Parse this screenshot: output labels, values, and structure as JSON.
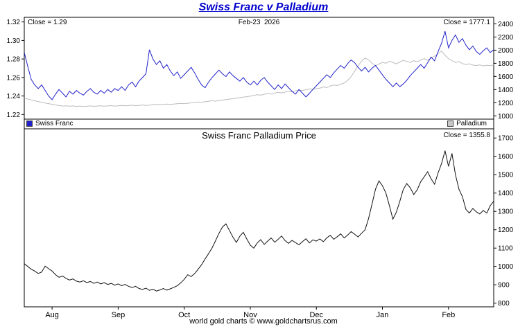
{
  "title": "Swiss Franc v Palladium",
  "footer": "world gold charts © www.goldchartsrus.com",
  "colors": {
    "title": "#0000CC",
    "swiss_franc": "#2222CC",
    "palladium": "#BBBBBB",
    "palladium_swatch": "#C8C8C8",
    "price_line": "#111111",
    "border": "#000000",
    "background": "#FFFFFF"
  },
  "top_chart": {
    "close_left": "Close = 1.29",
    "date_label": "Feb-23  2026",
    "close_right": "Close = 1777.1"
  },
  "legend": {
    "swiss_franc": "Swiss Franc",
    "palladium": "Palladium"
  },
  "bottom_chart": {
    "title": "Swiss Franc Palladium Price",
    "close_label": "Close = 1355.8"
  },
  "chart_data": [
    {
      "type": "line",
      "title": "Swiss Franc v Palladium",
      "date_label": "Feb-23  2026",
      "grid": false,
      "legend_position": "bottom",
      "x_axis": {
        "months": [
          "Aug",
          "Sep",
          "Oct",
          "Nov",
          "Dec",
          "Jan",
          "Feb"
        ],
        "month_start_indices": [
          8,
          27,
          46,
          65,
          84,
          103,
          122
        ],
        "points": 136
      },
      "left_axis": {
        "label": "Swiss Franc",
        "range": [
          1.215,
          1.325
        ],
        "ticks": [
          1.32,
          1.3,
          1.28,
          1.26,
          1.24,
          1.22
        ],
        "tick_labels": [
          "1.32",
          "1.30",
          "1.28",
          "1.26",
          "1.24",
          "1.22"
        ]
      },
      "right_axis": {
        "label": "Palladium",
        "range": [
          950,
          2500
        ],
        "ticks": [
          2400,
          2200,
          2000,
          1800,
          1600,
          1400,
          1200,
          1000
        ],
        "tick_labels": [
          "2400",
          "2200",
          "2000",
          "1800",
          "1600",
          "1400",
          "1200",
          "1000"
        ]
      },
      "series": [
        {
          "name": "Swiss Franc",
          "axis": "left",
          "color": "#2222CC",
          "close": 1.29,
          "values": [
            1.287,
            1.272,
            1.258,
            1.252,
            1.248,
            1.252,
            1.246,
            1.24,
            1.236,
            1.242,
            1.247,
            1.243,
            1.239,
            1.245,
            1.242,
            1.246,
            1.243,
            1.241,
            1.245,
            1.248,
            1.244,
            1.242,
            1.246,
            1.243,
            1.247,
            1.244,
            1.248,
            1.246,
            1.25,
            1.246,
            1.252,
            1.255,
            1.25,
            1.256,
            1.26,
            1.264,
            1.29,
            1.28,
            1.274,
            1.278,
            1.27,
            1.274,
            1.267,
            1.262,
            1.266,
            1.259,
            1.263,
            1.267,
            1.271,
            1.265,
            1.258,
            1.252,
            1.249,
            1.255,
            1.26,
            1.264,
            1.268,
            1.264,
            1.261,
            1.266,
            1.262,
            1.259,
            1.256,
            1.26,
            1.255,
            1.252,
            1.256,
            1.252,
            1.257,
            1.26,
            1.255,
            1.251,
            1.247,
            1.252,
            1.248,
            1.253,
            1.249,
            1.245,
            1.242,
            1.247,
            1.243,
            1.239,
            1.243,
            1.247,
            1.251,
            1.255,
            1.259,
            1.263,
            1.26,
            1.265,
            1.269,
            1.273,
            1.27,
            1.275,
            1.279,
            1.276,
            1.271,
            1.267,
            1.271,
            1.266,
            1.27,
            1.273,
            1.268,
            1.263,
            1.258,
            1.254,
            1.25,
            1.254,
            1.25,
            1.253,
            1.257,
            1.262,
            1.266,
            1.27,
            1.274,
            1.27,
            1.276,
            1.282,
            1.278,
            1.288,
            1.297,
            1.31,
            1.292,
            1.3,
            1.306,
            1.298,
            1.302,
            1.295,
            1.29,
            1.294,
            1.288,
            1.285,
            1.289,
            1.292,
            1.287,
            1.29
          ]
        },
        {
          "name": "Palladium",
          "axis": "right",
          "color": "#BBBBBB",
          "close": 1777.1,
          "values": [
            1270,
            1256,
            1243,
            1231,
            1218,
            1207,
            1196,
            1186,
            1176,
            1166,
            1156,
            1149,
            1153,
            1146,
            1151,
            1144,
            1149,
            1141,
            1146,
            1151,
            1145,
            1149,
            1153,
            1147,
            1151,
            1156,
            1149,
            1153,
            1158,
            1152,
            1157,
            1162,
            1155,
            1160,
            1165,
            1158,
            1163,
            1170,
            1175,
            1168,
            1174,
            1180,
            1174,
            1179,
            1185,
            1190,
            1184,
            1191,
            1198,
            1205,
            1212,
            1206,
            1215,
            1222,
            1230,
            1224,
            1232,
            1240,
            1248,
            1255,
            1262,
            1270,
            1278,
            1285,
            1292,
            1300,
            1310,
            1322,
            1315,
            1328,
            1340,
            1332,
            1345,
            1358,
            1350,
            1362,
            1375,
            1368,
            1380,
            1392,
            1385,
            1398,
            1410,
            1402,
            1415,
            1422,
            1440,
            1431,
            1455,
            1470,
            1461,
            1481,
            1500,
            1540,
            1600,
            1680,
            1762,
            1830,
            1880,
            1851,
            1801,
            1762,
            1790,
            1812,
            1800,
            1832,
            1815,
            1791,
            1820,
            1845,
            1828,
            1812,
            1840,
            1822,
            1850,
            1870,
            1846,
            1880,
            1910,
            1951,
            1985,
            1921,
            1870,
            1841,
            1812,
            1826,
            1796,
            1781,
            1791,
            1773,
            1766,
            1776,
            1761,
            1771,
            1763,
            1777.1
          ]
        }
      ]
    },
    {
      "type": "line",
      "title": "Swiss Franc Palladium Price",
      "grid": false,
      "x_axis": {
        "months": [
          "Aug",
          "Sep",
          "Oct",
          "Nov",
          "Dec",
          "Jan",
          "Feb"
        ],
        "month_start_indices": [
          8,
          27,
          46,
          65,
          84,
          103,
          122
        ],
        "points": 136
      },
      "right_axis": {
        "label": "",
        "range": [
          780,
          1750
        ],
        "ticks": [
          1700,
          1600,
          1500,
          1400,
          1300,
          1200,
          1100,
          1000,
          900,
          800
        ],
        "tick_labels": [
          "1700",
          "1600",
          "1500",
          "1400",
          "1300",
          "1200",
          "1100",
          "1000",
          "900",
          "800"
        ]
      },
      "series": [
        {
          "name": "Swiss Franc Palladium Price",
          "axis": "right",
          "color": "#111111",
          "close": 1355.8,
          "values": [
            1015,
            1000,
            985,
            975,
            962,
            970,
            1002,
            988,
            975,
            955,
            941,
            948,
            935,
            926,
            932,
            920,
            915,
            922,
            912,
            918,
            908,
            915,
            905,
            912,
            902,
            908,
            898,
            905,
            895,
            902,
            892,
            885,
            892,
            880,
            875,
            882,
            870,
            876,
            866,
            872,
            880,
            871,
            878,
            886,
            895,
            911,
            930,
            955,
            945,
            961,
            985,
            1010,
            1041,
            1070,
            1101,
            1140,
            1181,
            1215,
            1232,
            1196,
            1160,
            1131,
            1165,
            1186,
            1150,
            1116,
            1100,
            1128,
            1146,
            1120,
            1138,
            1155,
            1132,
            1148,
            1166,
            1141,
            1126,
            1142,
            1130,
            1118,
            1135,
            1151,
            1128,
            1145,
            1138,
            1150,
            1135,
            1156,
            1170,
            1148,
            1162,
            1178,
            1155,
            1171,
            1190,
            1176,
            1161,
            1181,
            1200,
            1261,
            1340,
            1421,
            1466,
            1440,
            1400,
            1331,
            1258,
            1296,
            1355,
            1420,
            1452,
            1429,
            1392,
            1418,
            1462,
            1488,
            1516,
            1478,
            1448,
            1510,
            1561,
            1631,
            1545,
            1616,
            1500,
            1421,
            1380,
            1311,
            1291,
            1316,
            1298,
            1286,
            1305,
            1291,
            1331,
            1355.8
          ]
        }
      ]
    }
  ]
}
